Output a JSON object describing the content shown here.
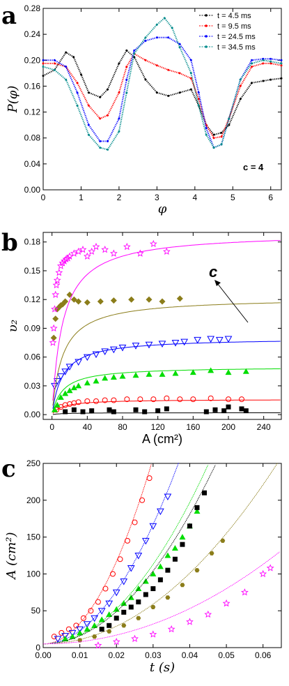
{
  "chart_data": [
    {
      "panel": "a",
      "type": "line",
      "xlabel": "φ",
      "ylabel": "P(φ)",
      "xlim": [
        0,
        6.28
      ],
      "ylim": [
        0.0,
        0.28
      ],
      "xticks": [
        "0",
        "1",
        "2",
        "3",
        "4",
        "5",
        "6"
      ],
      "yticks": [
        "0.00",
        "0.04",
        "0.08",
        "0.12",
        "0.16",
        "0.20",
        "0.24",
        "0.28"
      ],
      "annotation": "c = 4",
      "legend_position": "top-right",
      "series": [
        {
          "name": "t = 4.5 ms",
          "color": "#000000",
          "x": [
            0,
            0.3,
            0.6,
            0.8,
            1.0,
            1.2,
            1.5,
            1.7,
            2.0,
            2.2,
            2.4,
            2.7,
            3.0,
            3.3,
            3.6,
            3.9,
            4.1,
            4.3,
            4.5,
            4.7,
            4.9,
            5.2,
            5.5,
            5.8,
            6.0,
            6.28
          ],
          "y": [
            0.176,
            0.185,
            0.212,
            0.205,
            0.178,
            0.15,
            0.143,
            0.155,
            0.195,
            0.215,
            0.205,
            0.17,
            0.15,
            0.145,
            0.15,
            0.155,
            0.13,
            0.1,
            0.085,
            0.088,
            0.1,
            0.14,
            0.165,
            0.168,
            0.17,
            0.172
          ]
        },
        {
          "name": "t = 9.5 ms",
          "color": "#ff0000",
          "x": [
            0,
            0.3,
            0.6,
            0.9,
            1.2,
            1.5,
            1.7,
            2.0,
            2.2,
            2.4,
            2.7,
            3.0,
            3.3,
            3.6,
            3.9,
            4.1,
            4.3,
            4.5,
            4.7,
            4.9,
            5.2,
            5.5,
            5.8,
            6.0,
            6.28
          ],
          "y": [
            0.195,
            0.195,
            0.19,
            0.165,
            0.13,
            0.11,
            0.115,
            0.15,
            0.19,
            0.21,
            0.2,
            0.192,
            0.185,
            0.18,
            0.172,
            0.14,
            0.1,
            0.08,
            0.082,
            0.11,
            0.16,
            0.19,
            0.195,
            0.195,
            0.192
          ]
        },
        {
          "name": "t = 24.5 ms",
          "color": "#0000ff",
          "x": [
            0,
            0.3,
            0.6,
            0.9,
            1.2,
            1.5,
            1.7,
            2.0,
            2.2,
            2.4,
            2.7,
            3.0,
            3.3,
            3.6,
            3.9,
            4.1,
            4.3,
            4.5,
            4.7,
            4.9,
            5.2,
            5.5,
            5.8,
            6.0,
            6.28
          ],
          "y": [
            0.2,
            0.2,
            0.19,
            0.15,
            0.1,
            0.075,
            0.075,
            0.11,
            0.17,
            0.215,
            0.23,
            0.235,
            0.235,
            0.225,
            0.2,
            0.15,
            0.095,
            0.065,
            0.07,
            0.11,
            0.17,
            0.2,
            0.202,
            0.202,
            0.2
          ]
        },
        {
          "name": "t = 34.5 ms",
          "color": "#008b8b",
          "x": [
            0,
            0.3,
            0.6,
            0.9,
            1.2,
            1.5,
            1.7,
            2.0,
            2.2,
            2.4,
            2.7,
            3.0,
            3.2,
            3.4,
            3.6,
            3.9,
            4.1,
            4.3,
            4.5,
            4.7,
            4.9,
            5.2,
            5.5,
            5.8,
            6.0,
            6.28
          ],
          "y": [
            0.19,
            0.185,
            0.17,
            0.13,
            0.085,
            0.065,
            0.062,
            0.09,
            0.15,
            0.21,
            0.235,
            0.255,
            0.265,
            0.25,
            0.22,
            0.18,
            0.13,
            0.085,
            0.065,
            0.07,
            0.11,
            0.17,
            0.195,
            0.2,
            0.198,
            0.195
          ]
        }
      ]
    },
    {
      "panel": "b",
      "type": "scatter",
      "xlabel": "A (cm²)",
      "ylabel": "υ₂",
      "xlim": [
        -10,
        260
      ],
      "ylim": [
        -0.005,
        0.19
      ],
      "xticks": [
        "0",
        "40",
        "80",
        "120",
        "160",
        "200",
        "240"
      ],
      "yticks": [
        "0.00",
        "0.03",
        "0.06",
        "0.09",
        "0.12",
        "0.15",
        "0.18"
      ],
      "annotation": "c",
      "series": [
        {
          "name": "",
          "marker": "square",
          "color": "#000000",
          "fit_plateau": 0.002,
          "x": [
            15,
            25,
            35,
            45,
            65,
            70,
            95,
            105,
            120,
            130,
            175,
            185,
            195,
            200,
            215,
            220
          ],
          "y": [
            0.003,
            0.005,
            0.003,
            0.004,
            0.005,
            0.003,
            0.005,
            0.003,
            0.004,
            0.006,
            0.003,
            0.005,
            0.004,
            0.008,
            0.006,
            0.004
          ]
        },
        {
          "name": "",
          "marker": "circle",
          "color": "#ff0000",
          "fit_plateau": 0.016,
          "x": [
            5,
            10,
            15,
            20,
            25,
            30,
            40,
            50,
            60,
            70,
            85,
            100,
            115,
            130,
            145,
            160,
            180,
            200,
            215
          ],
          "y": [
            0.005,
            0.008,
            0.01,
            0.011,
            0.012,
            0.013,
            0.014,
            0.014,
            0.015,
            0.015,
            0.016,
            0.016,
            0.016,
            0.017,
            0.016,
            0.016,
            0.017,
            0.016,
            0.016
          ]
        },
        {
          "name": "",
          "marker": "triangle-up",
          "color": "#00dd00",
          "fit_plateau": 0.05,
          "x": [
            3,
            6,
            10,
            15,
            20,
            25,
            30,
            40,
            50,
            60,
            70,
            80,
            95,
            110,
            125,
            140,
            160,
            180,
            200,
            220
          ],
          "y": [
            0.005,
            0.01,
            0.018,
            0.022,
            0.025,
            0.028,
            0.03,
            0.033,
            0.035,
            0.038,
            0.039,
            0.04,
            0.041,
            0.042,
            0.042,
            0.043,
            0.044,
            0.046,
            0.044,
            0.045
          ]
        },
        {
          "name": "",
          "marker": "triangle-down",
          "color": "#0000ff",
          "fit_plateau": 0.08,
          "x": [
            3,
            6,
            10,
            15,
            20,
            30,
            40,
            50,
            60,
            70,
            80,
            95,
            110,
            125,
            140,
            150,
            165,
            180,
            190,
            200
          ],
          "y": [
            0.03,
            0.035,
            0.04,
            0.045,
            0.05,
            0.055,
            0.06,
            0.063,
            0.066,
            0.068,
            0.07,
            0.072,
            0.073,
            0.074,
            0.075,
            0.076,
            0.078,
            0.079,
            0.078,
            0.079
          ]
        },
        {
          "name": "",
          "marker": "diamond",
          "color": "#8b7d1a",
          "fit_plateau": 0.122,
          "x": [
            2,
            4,
            6,
            8,
            10,
            12,
            15,
            20,
            25,
            30,
            40,
            55,
            70,
            90,
            110,
            125,
            145
          ],
          "y": [
            0.08,
            0.1,
            0.11,
            0.112,
            0.114,
            0.115,
            0.118,
            0.125,
            0.12,
            0.118,
            0.117,
            0.118,
            0.119,
            0.12,
            0.12,
            0.118,
            0.121
          ]
        },
        {
          "name": "",
          "marker": "star",
          "color": "#ff00ff",
          "fit_plateau": 0.19,
          "x": [
            1,
            2,
            3,
            4,
            5,
            6,
            8,
            10,
            12,
            14,
            16,
            18,
            20,
            25,
            30,
            35,
            40,
            45,
            50,
            60,
            70,
            85,
            100,
            115,
            130
          ],
          "y": [
            0.075,
            0.09,
            0.11,
            0.125,
            0.135,
            0.14,
            0.148,
            0.155,
            0.158,
            0.16,
            0.162,
            0.163,
            0.165,
            0.168,
            0.17,
            0.172,
            0.165,
            0.17,
            0.175,
            0.172,
            0.168,
            0.175,
            0.168,
            0.178,
            0.17
          ]
        }
      ]
    },
    {
      "panel": "c",
      "type": "scatter",
      "xlabel": "t (s)",
      "ylabel": "A (cm²)",
      "xlim": [
        0.0,
        0.065
      ],
      "ylim": [
        0,
        250
      ],
      "xticks": [
        "0.00",
        "0.01",
        "0.02",
        "0.03",
        "0.04",
        "0.05",
        "0.06"
      ],
      "yticks": [
        "0",
        "50",
        "100",
        "150",
        "200",
        "250"
      ],
      "series": [
        {
          "name": "",
          "marker": "circle",
          "color": "#ff0000",
          "fit_coef": 280000,
          "x": [
            0.003,
            0.005,
            0.007,
            0.009,
            0.011,
            0.013,
            0.015,
            0.017,
            0.019,
            0.021,
            0.023,
            0.025,
            0.027,
            0.029
          ],
          "y": [
            15,
            20,
            25,
            30,
            40,
            50,
            62,
            80,
            100,
            120,
            145,
            170,
            200,
            230
          ]
        },
        {
          "name": "",
          "marker": "triangle-down",
          "color": "#0000ff",
          "fit_coef": 180000,
          "x": [
            0.004,
            0.006,
            0.008,
            0.01,
            0.012,
            0.014,
            0.016,
            0.018,
            0.02,
            0.022,
            0.024,
            0.026,
            0.028,
            0.03,
            0.032,
            0.034
          ],
          "y": [
            12,
            16,
            20,
            25,
            32,
            40,
            50,
            60,
            75,
            90,
            108,
            125,
            145,
            165,
            185,
            205
          ]
        },
        {
          "name": "",
          "marker": "triangle-up",
          "color": "#00dd00",
          "fit_coef": 120000,
          "x": [
            0.006,
            0.008,
            0.01,
            0.012,
            0.014,
            0.016,
            0.018,
            0.02,
            0.022,
            0.024,
            0.026,
            0.028,
            0.03,
            0.032,
            0.034,
            0.036,
            0.038,
            0.04,
            0.042
          ],
          "y": [
            12,
            15,
            20,
            25,
            30,
            38,
            45,
            52,
            60,
            68,
            80,
            90,
            100,
            110,
            125,
            135,
            150,
            165,
            185
          ]
        },
        {
          "name": "",
          "marker": "square",
          "color": "#000000",
          "fit_coef": 110000,
          "x": [
            0.016,
            0.018,
            0.02,
            0.022,
            0.024,
            0.026,
            0.028,
            0.03,
            0.032,
            0.034,
            0.036,
            0.038,
            0.04,
            0.042,
            0.044
          ],
          "y": [
            25,
            30,
            40,
            48,
            55,
            62,
            72,
            80,
            92,
            105,
            120,
            140,
            165,
            190,
            210
          ]
        },
        {
          "name": "",
          "marker": "hexagon",
          "color": "#8b7d1a",
          "fit_coef": 60000,
          "x": [
            0.01,
            0.014,
            0.018,
            0.022,
            0.026,
            0.03,
            0.034,
            0.038,
            0.042,
            0.046,
            0.049
          ],
          "y": [
            10,
            15,
            22,
            30,
            40,
            55,
            68,
            85,
            105,
            128,
            145
          ]
        },
        {
          "name": "",
          "marker": "star",
          "color": "#ff00ff",
          "fit_coef": 30000,
          "x": [
            0.015,
            0.02,
            0.025,
            0.03,
            0.035,
            0.04,
            0.045,
            0.05,
            0.055,
            0.06,
            0.062
          ],
          "y": [
            3,
            8,
            12,
            18,
            25,
            35,
            45,
            60,
            75,
            100,
            108
          ]
        }
      ]
    }
  ]
}
